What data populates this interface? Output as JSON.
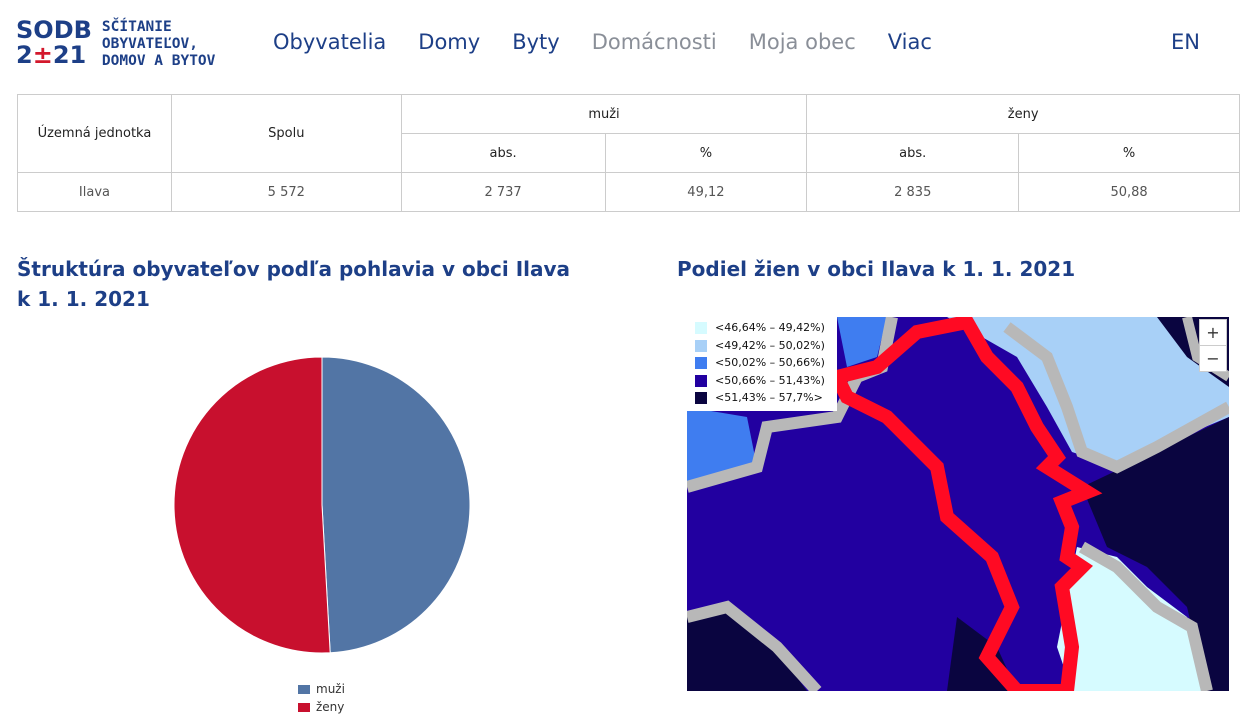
{
  "header": {
    "logo_top": "SODB",
    "logo_bottom_a": "2",
    "logo_bottom_b": "±",
    "logo_bottom_c": "21",
    "logo_line1": "SČÍTANIE",
    "logo_line2": "OBYVATEĽOV,",
    "logo_line3": "DOMOV A BYTOV",
    "nav": [
      "Obyvatelia",
      "Domy",
      "Byty",
      "Domácnosti",
      "Moja obec",
      "Viac"
    ],
    "lang": "EN"
  },
  "table": {
    "col_unit": "Územná jednotka",
    "col_total": "Spolu",
    "col_men": "muži",
    "col_women": "ženy",
    "sub_abs": "abs.",
    "sub_pct": "%",
    "row": {
      "unit": "Ilava",
      "total": "5 572",
      "men_abs": "2 737",
      "men_pct": "49,12",
      "women_abs": "2 835",
      "women_pct": "50,88"
    }
  },
  "pie_title": "Štruktúra obyvateľov podľa pohlavia v obci Ilava k 1. 1. 2021",
  "map_title": "Podiel žien v obci Ilava k 1. 1. 2021",
  "chart_data": {
    "type": "pie",
    "categories": [
      "muži",
      "ženy"
    ],
    "values": [
      49.12,
      50.88
    ],
    "colors": [
      "#5275a5",
      "#c8102e"
    ],
    "legend_position": "bottom"
  },
  "map": {
    "legend": [
      {
        "label": "<46,64% – 49,42%)",
        "color": "#d6fbff"
      },
      {
        "label": "<49,42% – 50,02%)",
        "color": "#a8d0f7"
      },
      {
        "label": "<50,02% – 50,66%)",
        "color": "#3f7df0"
      },
      {
        "label": "<50,66% – 51,43%)",
        "color": "#2200a0"
      },
      {
        "label": "<51,43% – 57,7%>",
        "color": "#0a0540"
      }
    ],
    "zoom_in": "+",
    "zoom_out": "−"
  }
}
